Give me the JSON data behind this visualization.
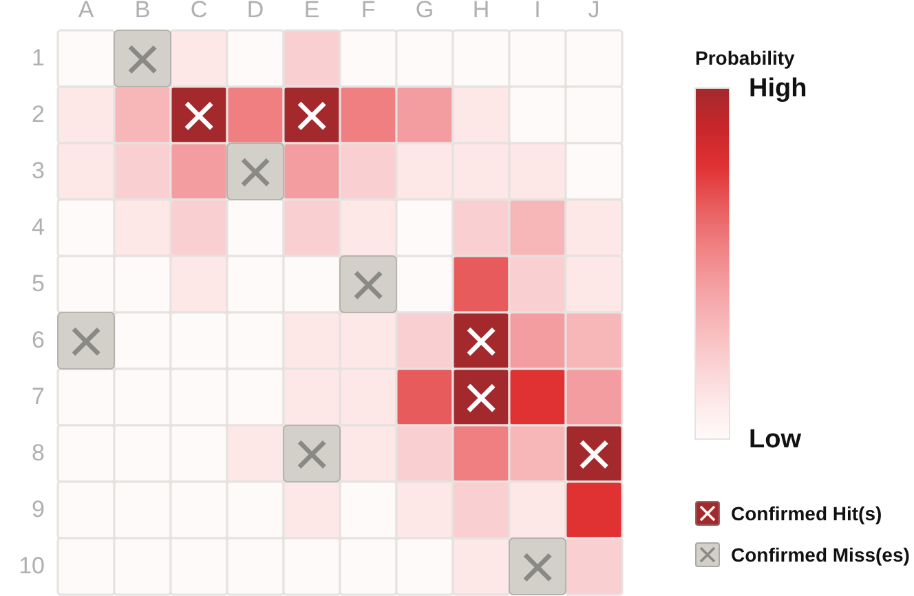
{
  "chart_data": {
    "type": "heatmap",
    "clabel": "Probability",
    "categories": [
      "A",
      "B",
      "C",
      "D",
      "E",
      "F",
      "G",
      "H",
      "I",
      "J"
    ],
    "y_categories": [
      "1",
      "2",
      "3",
      "4",
      "5",
      "6",
      "7",
      "8",
      "9",
      "10"
    ],
    "cells": [
      [
        0,
        null,
        1,
        0,
        2,
        0,
        0,
        0,
        0,
        0
      ],
      [
        1,
        3,
        9,
        5,
        9,
        5,
        4,
        1,
        0,
        0
      ],
      [
        1,
        2,
        4,
        null,
        4,
        2,
        1,
        1,
        1,
        0
      ],
      [
        0,
        1,
        2,
        0,
        2,
        1,
        0,
        2,
        3,
        1
      ],
      [
        0,
        0,
        1,
        0,
        0,
        null,
        0,
        6,
        2,
        1
      ],
      [
        null,
        0,
        0,
        0,
        1,
        1,
        2,
        9,
        4,
        3
      ],
      [
        0,
        0,
        0,
        0,
        1,
        1,
        6,
        9,
        7,
        4
      ],
      [
        0,
        0,
        0,
        1,
        null,
        1,
        2,
        5,
        3,
        9
      ],
      [
        0,
        0,
        0,
        0,
        1,
        0,
        1,
        2,
        1,
        7
      ],
      [
        0,
        0,
        0,
        0,
        0,
        0,
        0,
        1,
        null,
        2
      ]
    ],
    "cell_labels": [
      [
        null,
        "×",
        null,
        null,
        null,
        null,
        null,
        null,
        null,
        null
      ],
      [
        null,
        null,
        "×",
        null,
        "×",
        null,
        null,
        null,
        null,
        null
      ],
      [
        null,
        null,
        null,
        "×",
        null,
        null,
        null,
        null,
        null,
        null
      ],
      [
        null,
        null,
        null,
        null,
        null,
        null,
        null,
        null,
        null,
        null
      ],
      [
        null,
        null,
        null,
        null,
        null,
        "×",
        null,
        null,
        null,
        null
      ],
      [
        "×",
        null,
        null,
        null,
        null,
        null,
        null,
        "×",
        null,
        null
      ],
      [
        null,
        null,
        null,
        null,
        null,
        null,
        null,
        "×",
        null,
        null
      ],
      [
        null,
        null,
        null,
        null,
        "×",
        null,
        null,
        null,
        null,
        "×"
      ],
      [
        null,
        null,
        null,
        null,
        null,
        null,
        null,
        null,
        null,
        null
      ],
      [
        null,
        null,
        null,
        null,
        null,
        null,
        null,
        null,
        "×",
        null
      ]
    ],
    "clim": [
      0,
      9
    ],
    "cticks": [
      {
        "value": 9,
        "label": "High"
      },
      {
        "value": 0,
        "label": "Low"
      }
    ],
    "colors": [
      "#fffafa",
      "#fde7e7",
      "#facfd1",
      "#f7b7b9",
      "#f49da0",
      "#ef7f80",
      "#e85b5d",
      "#e03133",
      "#c7262b",
      "#a3292d"
    ],
    "annotations": [
      "Confirmed Hit(s)",
      "Confirmed Miss(es)"
    ]
  }
}
